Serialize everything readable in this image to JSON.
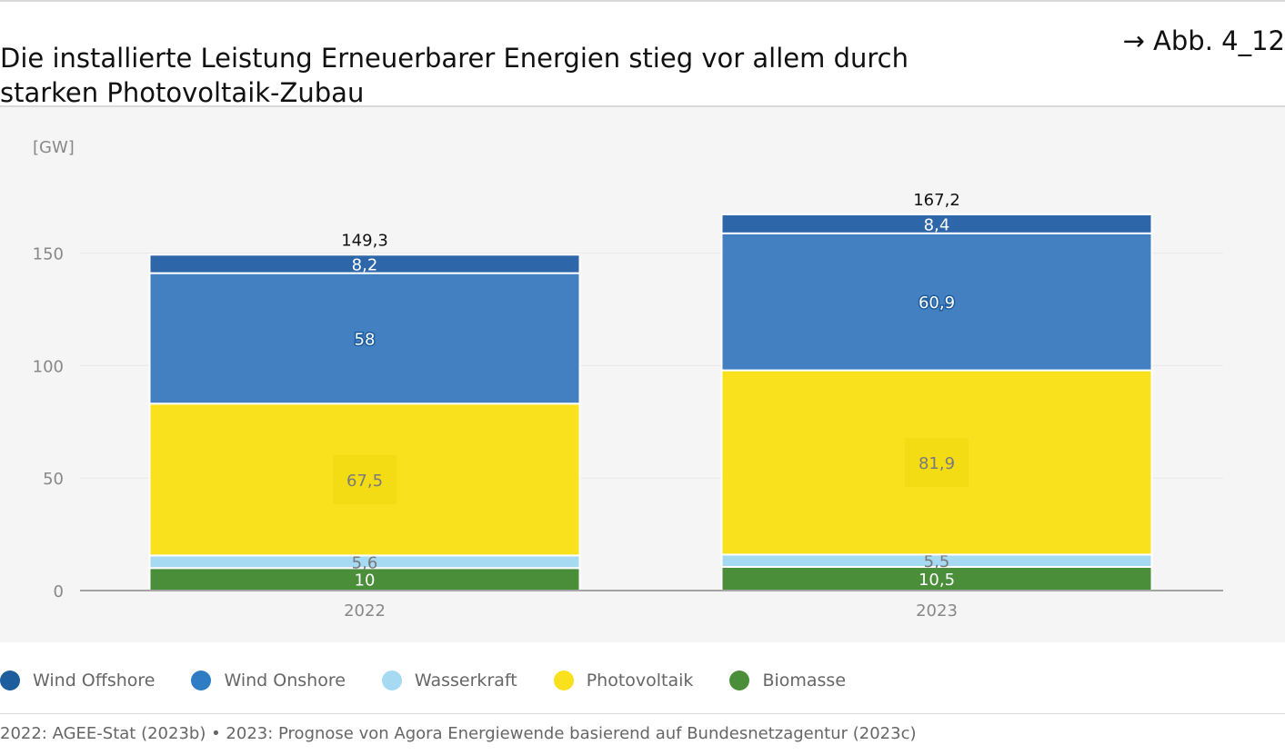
{
  "header": {
    "title": "Die installierte Leistung Erneuerbarer Energien stieg vor allem durch starken Photovoltaik-Zubau",
    "figure_ref": "→ Abb. 4_12"
  },
  "chart_data": {
    "type": "bar",
    "stacked": true,
    "ylabel": "[GW]",
    "ylim": [
      0,
      175
    ],
    "yticks": [
      0,
      50,
      100,
      150
    ],
    "grid": true,
    "categories": [
      "2022",
      "2023"
    ],
    "series": [
      {
        "name": "Biomasse",
        "values": [
          10,
          10.5
        ],
        "labels": [
          "10",
          "10,5"
        ],
        "color": "#4a8e3a",
        "label_color": "#ffffff"
      },
      {
        "name": "Wasserkraft",
        "values": [
          5.6,
          5.5
        ],
        "labels": [
          "5,6",
          "5,5"
        ],
        "color": "#a6daf2",
        "label_color": "#777777"
      },
      {
        "name": "Photovoltaik",
        "values": [
          67.5,
          81.9
        ],
        "labels": [
          "67,5",
          "81,9"
        ],
        "color": "#fae11e",
        "label_color": "#7a7a7a"
      },
      {
        "name": "Wind Onshore",
        "values": [
          58,
          60.9
        ],
        "labels": [
          "58",
          "60,9"
        ],
        "color": "#4380c2",
        "label_color": "#ffffff"
      },
      {
        "name": "Wind Offshore",
        "values": [
          8.2,
          8.4
        ],
        "labels": [
          "8,2",
          "8,4"
        ],
        "color": "#2d67aa",
        "label_color": "#ffffff"
      }
    ],
    "totals": [
      149.3,
      167.2
    ],
    "total_labels": [
      "149,3",
      "167,2"
    ],
    "legend_order": [
      "Wind Offshore",
      "Wind Onshore",
      "Wasserkraft",
      "Photovoltaik",
      "Biomasse"
    ],
    "legend_position": "bottom-left"
  },
  "legend": [
    {
      "label": "Wind Offshore",
      "color": "#1d5d9e"
    },
    {
      "label": "Wind Onshore",
      "color": "#2e7cc4"
    },
    {
      "label": "Wasserkraft",
      "color": "#a6daf2"
    },
    {
      "label": "Photovoltaik",
      "color": "#fae11e"
    },
    {
      "label": "Biomasse",
      "color": "#4a8e3a"
    }
  ],
  "source": "2022: AGEE-Stat (2023b) • 2023: Prognose von Agora Energiewende basierend auf Bundesnetzagentur (2023c)"
}
